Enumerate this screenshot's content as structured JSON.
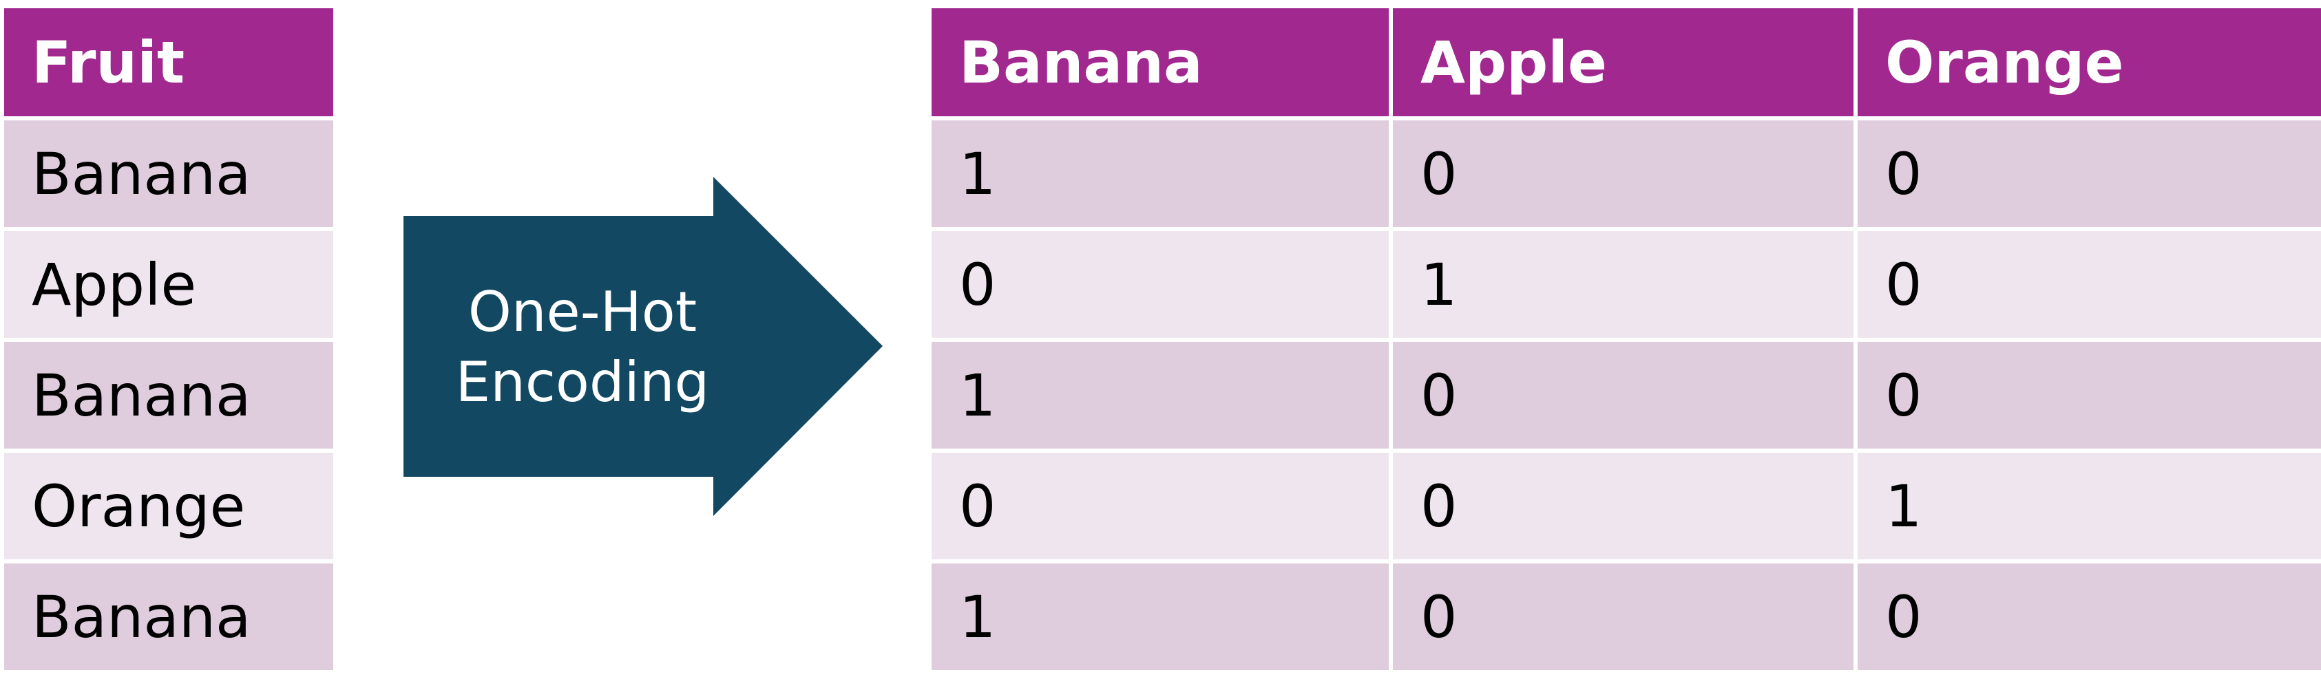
{
  "colors": {
    "header_bg": "#a0288f",
    "header_text": "#ffffff",
    "row_odd_bg": "#dfcddd",
    "row_even_bg": "#efe5ee",
    "arrow_fill": "#124862",
    "arrow_text": "#ffffff"
  },
  "source_table": {
    "header": "Fruit",
    "rows": [
      "Banana",
      "Apple",
      "Banana",
      "Orange",
      "Banana"
    ]
  },
  "arrow": {
    "icon": "right-arrow-icon",
    "line1": "One-Hot",
    "line2": "Encoding"
  },
  "encoded_table": {
    "headers": [
      "Banana",
      "Apple",
      "Orange"
    ],
    "rows": [
      [
        "1",
        "0",
        "0"
      ],
      [
        "0",
        "1",
        "0"
      ],
      [
        "1",
        "0",
        "0"
      ],
      [
        "0",
        "0",
        "1"
      ],
      [
        "1",
        "0",
        "0"
      ]
    ]
  }
}
